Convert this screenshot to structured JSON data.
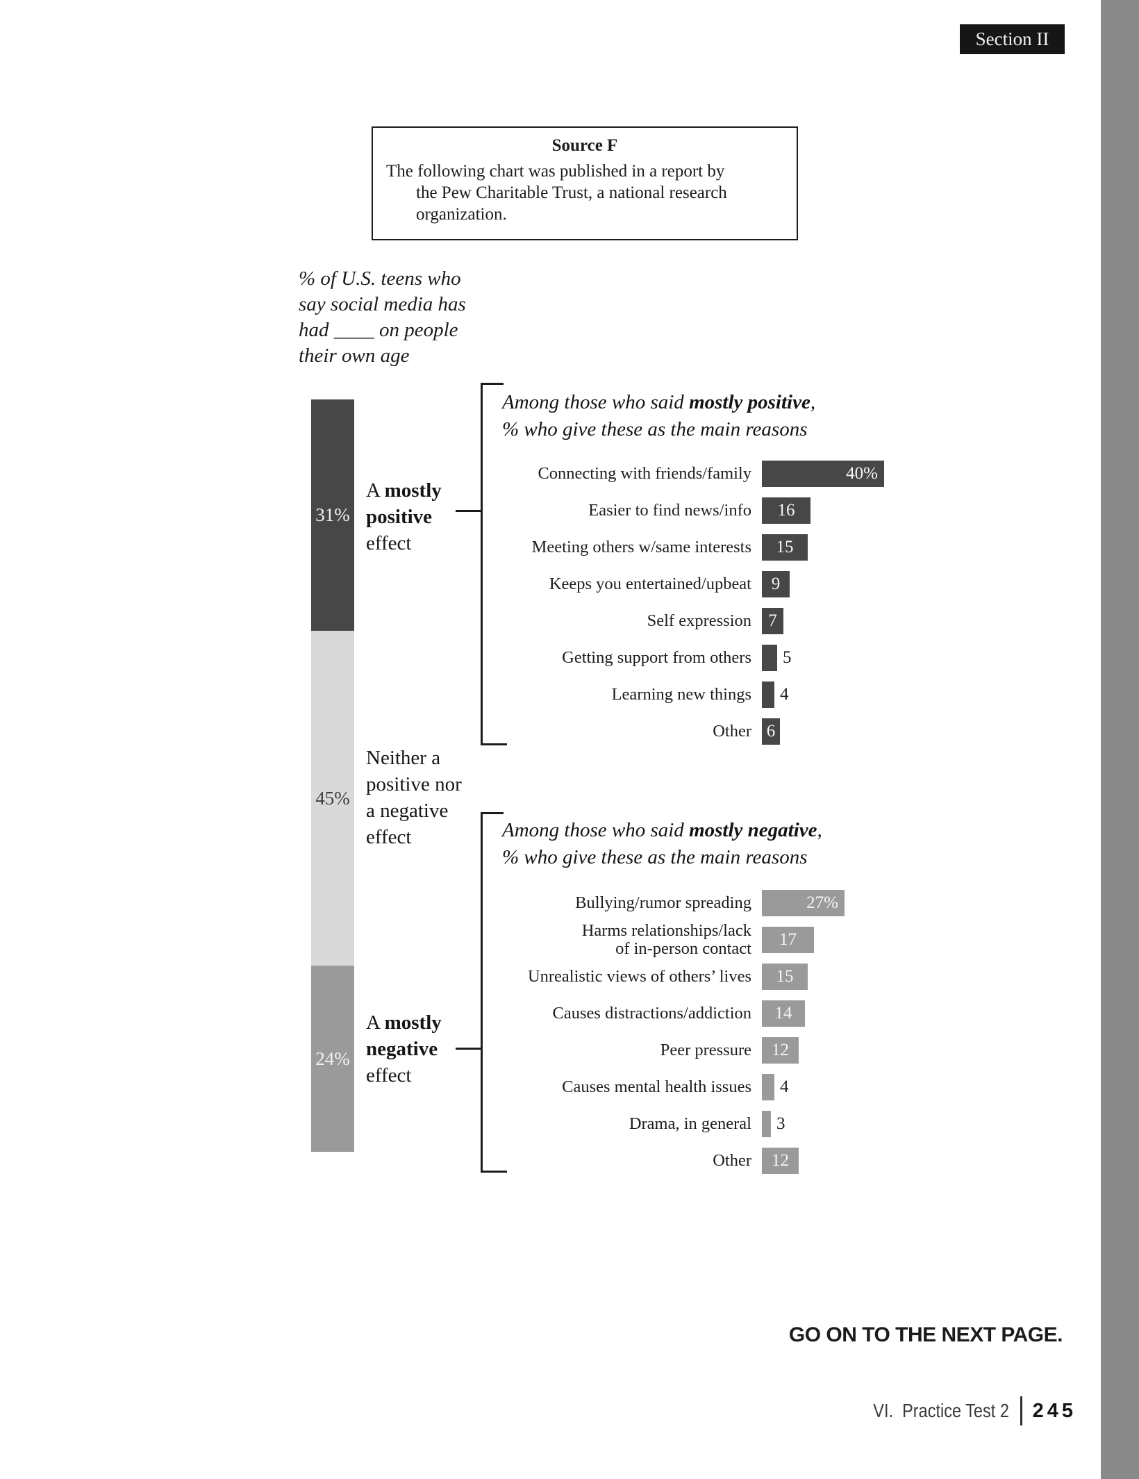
{
  "page": {
    "section_badge": "Section II",
    "go_on_text": "GO ON TO THE NEXT PAGE.",
    "footer": {
      "label": "VI.  Practice Test 2",
      "page_number": "245"
    }
  },
  "source_box": {
    "title": "Source F",
    "lines": [
      "The following chart was published in a report by",
      "the Pew Charitable Trust, a national research",
      "organization."
    ]
  },
  "chart_data": [
    {
      "type": "bar",
      "subtype": "stacked_column",
      "title": "% of U.S. teens who say social media has had ____ on people their own age",
      "title_lines": [
        "% of U.S. teens who",
        "say social media has",
        "had ____ on people",
        "their own age"
      ],
      "segments": [
        {
          "label": "A mostly positive effect",
          "value": 31,
          "display": "31%",
          "color": "#474747",
          "text_color": "#f2f2f2",
          "label_lines": [
            [
              {
                "t": "A ",
                "b": false
              },
              {
                "t": "mostly",
                "b": true
              }
            ],
            [
              {
                "t": "positive",
                "b": true
              }
            ],
            [
              {
                "t": "effect",
                "b": false
              }
            ]
          ]
        },
        {
          "label": "Neither a positive nor a negative effect",
          "value": 45,
          "display": "45%",
          "color": "#d9d9d9",
          "text_color": "#3e3e3e",
          "label_lines": [
            [
              {
                "t": "Neither a",
                "b": false
              }
            ],
            [
              {
                "t": "positive nor",
                "b": false
              }
            ],
            [
              {
                "t": "a negative",
                "b": false
              }
            ],
            [
              {
                "t": "effect",
                "b": false
              }
            ]
          ]
        },
        {
          "label": "A mostly negative effect",
          "value": 24,
          "display": "24%",
          "color": "#9a9a9a",
          "text_color": "#f2f2f2",
          "label_lines": [
            [
              {
                "t": "A ",
                "b": false
              },
              {
                "t": "mostly",
                "b": true
              }
            ],
            [
              {
                "t": "negative",
                "b": true
              }
            ],
            [
              {
                "t": "effect",
                "b": false
              }
            ]
          ]
        }
      ]
    },
    {
      "type": "bar",
      "title": {
        "prefix": "Among those who said ",
        "bold": "mostly positive",
        "suffix": ",",
        "line2": "% who give these as the main reasons"
      },
      "bar_color": "#474747",
      "categories": [
        "Connecting with friends/family",
        "Easier to find news/info",
        "Meeting others w/same interests",
        "Keeps you entertained/upbeat",
        "Self expression",
        "Getting support from others",
        "Learning new things",
        "Other"
      ],
      "values": [
        40,
        16,
        15,
        9,
        7,
        5,
        4,
        6
      ],
      "rows": [
        {
          "label_lines": [
            "Connecting with friends/family"
          ],
          "value": 40,
          "display": "40%",
          "placement": "inside-right"
        },
        {
          "label_lines": [
            "Easier to find news/info"
          ],
          "value": 16,
          "display": "16",
          "placement": "inside"
        },
        {
          "label_lines": [
            "Meeting others w/same interests"
          ],
          "value": 15,
          "display": "15",
          "placement": "inside"
        },
        {
          "label_lines": [
            "Keeps you entertained/upbeat"
          ],
          "value": 9,
          "display": "9",
          "placement": "inside"
        },
        {
          "label_lines": [
            "Self expression"
          ],
          "value": 7,
          "display": "7",
          "placement": "inside"
        },
        {
          "label_lines": [
            "Getting support from others"
          ],
          "value": 5,
          "display": "5",
          "placement": "outside"
        },
        {
          "label_lines": [
            "Learning new things"
          ],
          "value": 4,
          "display": "4",
          "placement": "outside"
        },
        {
          "label_lines": [
            "Other"
          ],
          "value": 6,
          "display": "6",
          "placement": "inside"
        }
      ]
    },
    {
      "type": "bar",
      "title": {
        "prefix": "Among those who said ",
        "bold": "mostly negative",
        "suffix": ",",
        "line2": "% who give these as the main reasons"
      },
      "bar_color": "#9a9a9a",
      "categories": [
        "Bullying/rumor spreading",
        "Harms relationships/lack of in-person contact",
        "Unrealistic views of others’ lives",
        "Causes distractions/addiction",
        "Peer pressure",
        "Causes mental health issues",
        "Drama, in general",
        "Other"
      ],
      "values": [
        27,
        17,
        15,
        14,
        12,
        4,
        3,
        12
      ],
      "rows": [
        {
          "label_lines": [
            "Bullying/rumor spreading"
          ],
          "value": 27,
          "display": "27%",
          "placement": "inside-right"
        },
        {
          "label_lines": [
            "Harms relationships/lack",
            "of in-person contact"
          ],
          "value": 17,
          "display": "17",
          "placement": "inside"
        },
        {
          "label_lines": [
            "Unrealistic views of others’ lives"
          ],
          "value": 15,
          "display": "15",
          "placement": "inside"
        },
        {
          "label_lines": [
            "Causes distractions/addiction"
          ],
          "value": 14,
          "display": "14",
          "placement": "inside"
        },
        {
          "label_lines": [
            "Peer pressure"
          ],
          "value": 12,
          "display": "12",
          "placement": "inside"
        },
        {
          "label_lines": [
            "Causes mental health issues"
          ],
          "value": 4,
          "display": "4",
          "placement": "outside"
        },
        {
          "label_lines": [
            "Drama, in general"
          ],
          "value": 3,
          "display": "3",
          "placement": "outside"
        },
        {
          "label_lines": [
            "Other"
          ],
          "value": 12,
          "display": "12",
          "placement": "inside"
        }
      ]
    }
  ]
}
